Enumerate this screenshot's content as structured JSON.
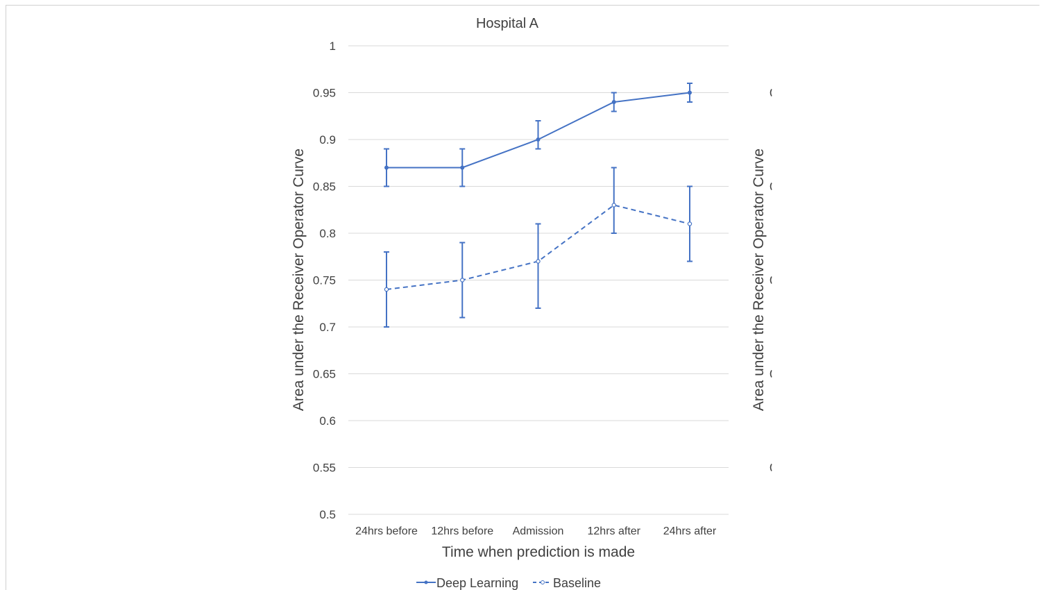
{
  "chart_data": {
    "type": "line",
    "title": "Hospital A",
    "xlabel": "Time when prediction is made",
    "ylabel": "Area under the Receiver  Operator Curve",
    "categories": [
      "24hrs before",
      "12hrs before",
      "Admission",
      "12hrs after",
      "24hrs after"
    ],
    "ylim": [
      0.5,
      1
    ],
    "yticks": [
      0.5,
      0.55,
      0.6,
      0.65,
      0.7,
      0.75,
      0.8,
      0.85,
      0.9,
      0.95,
      1
    ],
    "ytick_labels": [
      "0.5",
      "0.55",
      "0.6",
      "0.65",
      "0.7",
      "0.75",
      "0.8",
      "0.85",
      "0.9",
      "0.95",
      "1"
    ],
    "grid": true,
    "legend_position": "bottom",
    "series": [
      {
        "name": "Deep Learning",
        "style": "solid",
        "color": "#4472c4",
        "values": [
          0.87,
          0.87,
          0.9,
          0.94,
          0.95
        ],
        "err_low": [
          0.85,
          0.85,
          0.89,
          0.93,
          0.94
        ],
        "err_high": [
          0.89,
          0.89,
          0.92,
          0.95,
          0.96
        ]
      },
      {
        "name": "Baseline",
        "style": "dashed",
        "color": "#4472c4",
        "values": [
          0.74,
          0.75,
          0.77,
          0.83,
          0.81
        ],
        "err_low": [
          0.7,
          0.71,
          0.72,
          0.8,
          0.77
        ],
        "err_high": [
          0.78,
          0.79,
          0.81,
          0.87,
          0.85
        ]
      }
    ],
    "secondary_panel": {
      "ylabel": "Area under the Receiver  Operator Curve"
    }
  },
  "colors": {
    "series": "#4472c4",
    "grid": "#d9d9d9",
    "text": "#404040"
  }
}
